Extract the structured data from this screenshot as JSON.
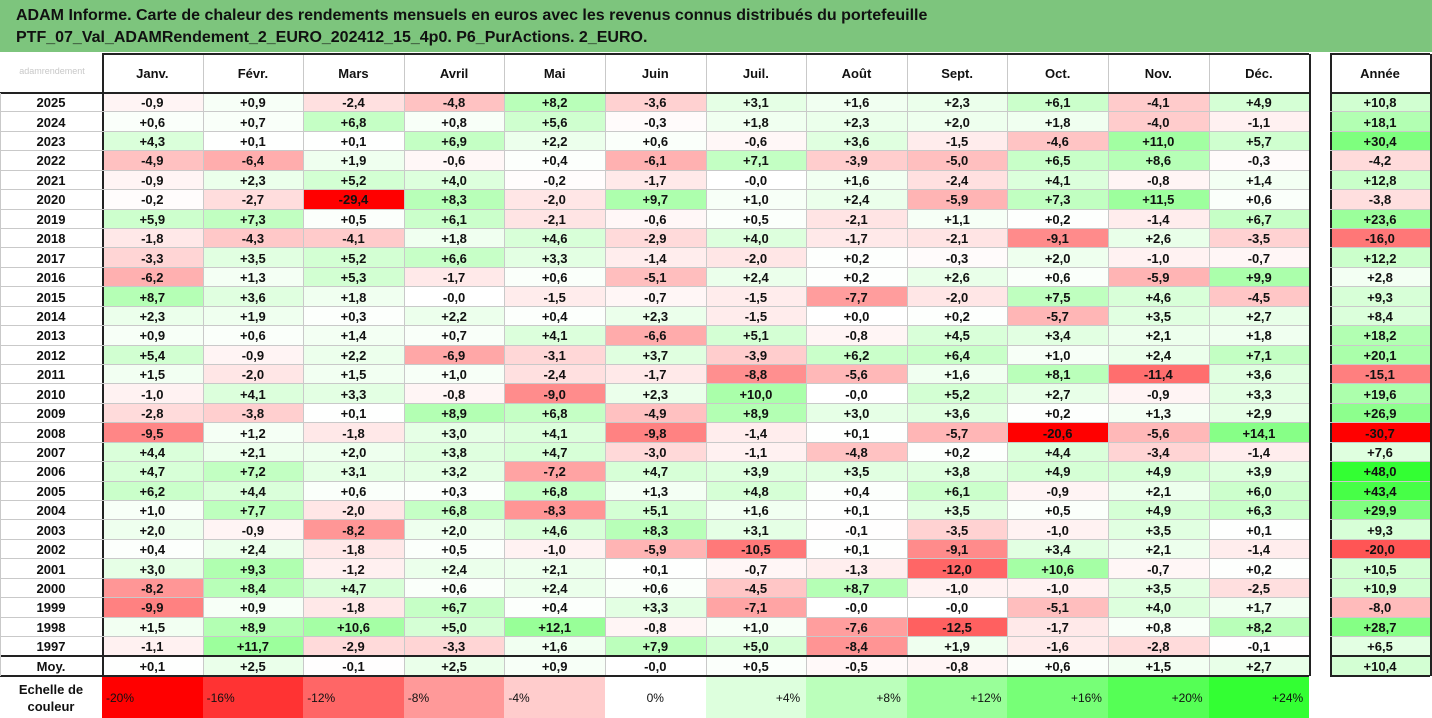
{
  "title": {
    "line1": "ADAM Informe. Carte de chaleur des rendements mensuels en euros avec les revenus connus distribués du portefeuille",
    "line2": "PTF_07_Val_ADAMRendement_2_EURO_202412_15_4p0. P6_PurActions. 2_EURO."
  },
  "watermark": "adamrendement",
  "chart_data": {
    "type": "heatmap",
    "columns": [
      "Janv.",
      "Févr.",
      "Mars",
      "Avril",
      "Mai",
      "Juin",
      "Juil.",
      "Août",
      "Sept.",
      "Oct.",
      "Nov.",
      "Déc."
    ],
    "year_column": "Année",
    "rows": [
      {
        "label": "2025",
        "values": [
          "-0,9",
          "+0,9",
          "-2,4",
          "-4,8",
          "+8,2",
          "-3,6",
          "+3,1",
          "+1,6",
          "+2,3",
          "+6,1",
          "-4,1",
          "+4,9"
        ],
        "year": "+10,8"
      },
      {
        "label": "2024",
        "values": [
          "+0,6",
          "+0,7",
          "+6,8",
          "+0,8",
          "+5,6",
          "-0,3",
          "+1,8",
          "+2,3",
          "+2,0",
          "+1,8",
          "-4,0",
          "-1,1"
        ],
        "year": "+18,1"
      },
      {
        "label": "2023",
        "values": [
          "+4,3",
          "+0,1",
          "+0,1",
          "+6,9",
          "+2,2",
          "+0,6",
          "-0,6",
          "+3,6",
          "-1,5",
          "-4,6",
          "+11,0",
          "+5,7"
        ],
        "year": "+30,4"
      },
      {
        "label": "2022",
        "values": [
          "-4,9",
          "-6,4",
          "+1,9",
          "-0,6",
          "+0,4",
          "-6,1",
          "+7,1",
          "-3,9",
          "-5,0",
          "+6,5",
          "+8,6",
          "-0,3"
        ],
        "year": "-4,2"
      },
      {
        "label": "2021",
        "values": [
          "-0,9",
          "+2,3",
          "+5,2",
          "+4,0",
          "-0,2",
          "-1,7",
          "-0,0",
          "+1,6",
          "-2,4",
          "+4,1",
          "-0,8",
          "+1,4"
        ],
        "year": "+12,8"
      },
      {
        "label": "2020",
        "values": [
          "-0,2",
          "-2,7",
          "-29,4",
          "+8,3",
          "-2,0",
          "+9,7",
          "+1,0",
          "+2,4",
          "-5,9",
          "+7,3",
          "+11,5",
          "+0,6"
        ],
        "year": "-3,8"
      },
      {
        "label": "2019",
        "values": [
          "+5,9",
          "+7,3",
          "+0,5",
          "+6,1",
          "-2,1",
          "-0,6",
          "+0,5",
          "-2,1",
          "+1,1",
          "+0,2",
          "-1,4",
          "+6,7"
        ],
        "year": "+23,6"
      },
      {
        "label": "2018",
        "values": [
          "-1,8",
          "-4,3",
          "-4,1",
          "+1,8",
          "+4,6",
          "-2,9",
          "+4,0",
          "-1,7",
          "-2,1",
          "-9,1",
          "+2,6",
          "-3,5"
        ],
        "year": "-16,0"
      },
      {
        "label": "2017",
        "values": [
          "-3,3",
          "+3,5",
          "+5,2",
          "+6,6",
          "+3,3",
          "-1,4",
          "-2,0",
          "+0,2",
          "-0,3",
          "+2,0",
          "-1,0",
          "-0,7"
        ],
        "year": "+12,2"
      },
      {
        "label": "2016",
        "values": [
          "-6,2",
          "+1,3",
          "+5,3",
          "-1,7",
          "+0,6",
          "-5,1",
          "+2,4",
          "+0,2",
          "+2,6",
          "+0,6",
          "-5,9",
          "+9,9"
        ],
        "year": "+2,8"
      },
      {
        "label": "2015",
        "values": [
          "+8,7",
          "+3,6",
          "+1,8",
          "-0,0",
          "-1,5",
          "-0,7",
          "-1,5",
          "-7,7",
          "-2,0",
          "+7,5",
          "+4,6",
          "-4,5"
        ],
        "year": "+9,3"
      },
      {
        "label": "2014",
        "values": [
          "+2,3",
          "+1,9",
          "+0,3",
          "+2,2",
          "+0,4",
          "+2,3",
          "-1,5",
          "+0,0",
          "+0,2",
          "-5,7",
          "+3,5",
          "+2,7"
        ],
        "year": "+8,4"
      },
      {
        "label": "2013",
        "values": [
          "+0,9",
          "+0,6",
          "+1,4",
          "+0,7",
          "+4,1",
          "-6,6",
          "+5,1",
          "-0,8",
          "+4,5",
          "+3,4",
          "+2,1",
          "+1,8"
        ],
        "year": "+18,2"
      },
      {
        "label": "2012",
        "values": [
          "+5,4",
          "-0,9",
          "+2,2",
          "-6,9",
          "-3,1",
          "+3,7",
          "-3,9",
          "+6,2",
          "+6,4",
          "+1,0",
          "+2,4",
          "+7,1"
        ],
        "year": "+20,1"
      },
      {
        "label": "2011",
        "values": [
          "+1,5",
          "-2,0",
          "+1,5",
          "+1,0",
          "-2,4",
          "-1,7",
          "-8,8",
          "-5,6",
          "+1,6",
          "+8,1",
          "-11,4",
          "+3,6"
        ],
        "year": "-15,1"
      },
      {
        "label": "2010",
        "values": [
          "-1,0",
          "+4,1",
          "+3,3",
          "-0,8",
          "-9,0",
          "+2,3",
          "+10,0",
          "-0,0",
          "+5,2",
          "+2,7",
          "-0,9",
          "+3,3"
        ],
        "year": "+19,6"
      },
      {
        "label": "2009",
        "values": [
          "-2,8",
          "-3,8",
          "+0,1",
          "+8,9",
          "+6,8",
          "-4,9",
          "+8,9",
          "+3,0",
          "+3,6",
          "+0,2",
          "+1,3",
          "+2,9"
        ],
        "year": "+26,9"
      },
      {
        "label": "2008",
        "values": [
          "-9,5",
          "+1,2",
          "-1,8",
          "+3,0",
          "+4,1",
          "-9,8",
          "-1,4",
          "+0,1",
          "-5,7",
          "-20,6",
          "-5,6",
          "+14,1"
        ],
        "year": "-30,7"
      },
      {
        "label": "2007",
        "values": [
          "+4,4",
          "+2,1",
          "+2,0",
          "+3,8",
          "+4,7",
          "-3,0",
          "-1,1",
          "-4,8",
          "+0,2",
          "+4,4",
          "-3,4",
          "-1,4"
        ],
        "year": "+7,6"
      },
      {
        "label": "2006",
        "values": [
          "+4,7",
          "+7,2",
          "+3,1",
          "+3,2",
          "-7,2",
          "+4,7",
          "+3,9",
          "+3,5",
          "+3,8",
          "+4,9",
          "+4,9",
          "+3,9"
        ],
        "year": "+48,0"
      },
      {
        "label": "2005",
        "values": [
          "+6,2",
          "+4,4",
          "+0,6",
          "+0,3",
          "+6,8",
          "+1,3",
          "+4,8",
          "+0,4",
          "+6,1",
          "-0,9",
          "+2,1",
          "+6,0"
        ],
        "year": "+43,4"
      },
      {
        "label": "2004",
        "values": [
          "+1,0",
          "+7,7",
          "-2,0",
          "+6,8",
          "-8,3",
          "+5,1",
          "+1,6",
          "+0,1",
          "+3,5",
          "+0,5",
          "+4,9",
          "+6,3"
        ],
        "year": "+29,9"
      },
      {
        "label": "2003",
        "values": [
          "+2,0",
          "-0,9",
          "-8,2",
          "+2,0",
          "+4,6",
          "+8,3",
          "+3,1",
          "-0,1",
          "-3,5",
          "-1,0",
          "+3,5",
          "+0,1"
        ],
        "year": "+9,3"
      },
      {
        "label": "2002",
        "values": [
          "+0,4",
          "+2,4",
          "-1,8",
          "+0,5",
          "-1,0",
          "-5,9",
          "-10,5",
          "+0,1",
          "-9,1",
          "+3,4",
          "+2,1",
          "-1,4"
        ],
        "year": "-20,0"
      },
      {
        "label": "2001",
        "values": [
          "+3,0",
          "+9,3",
          "-1,2",
          "+2,4",
          "+2,1",
          "+0,1",
          "-0,7",
          "-1,3",
          "-12,0",
          "+10,6",
          "-0,7",
          "+0,2"
        ],
        "year": "+10,5"
      },
      {
        "label": "2000",
        "values": [
          "-8,2",
          "+8,4",
          "+4,7",
          "+0,6",
          "+2,4",
          "+0,6",
          "-4,5",
          "+8,7",
          "-1,0",
          "-1,0",
          "+3,5",
          "-2,5"
        ],
        "year": "+10,9"
      },
      {
        "label": "1999",
        "values": [
          "-9,9",
          "+0,9",
          "-1,8",
          "+6,7",
          "+0,4",
          "+3,3",
          "-7,1",
          "-0,0",
          "-0,0",
          "-5,1",
          "+4,0",
          "+1,7"
        ],
        "year": "-8,0"
      },
      {
        "label": "1998",
        "values": [
          "+1,5",
          "+8,9",
          "+10,6",
          "+5,0",
          "+12,1",
          "-0,8",
          "+1,0",
          "-7,6",
          "-12,5",
          "-1,7",
          "+0,8",
          "+8,2"
        ],
        "year": "+28,7"
      },
      {
        "label": "1997",
        "values": [
          "-1,1",
          "+11,7",
          "-2,9",
          "-3,3",
          "+1,6",
          "+7,9",
          "+5,0",
          "-8,4",
          "+1,9",
          "-1,6",
          "-2,8",
          "-0,1"
        ],
        "year": "+6,5"
      }
    ],
    "average": {
      "label": "Moy.",
      "values": [
        "+0,1",
        "+2,5",
        "-0,1",
        "+2,5",
        "+0,9",
        "-0,0",
        "+0,5",
        "-0,5",
        "-0,8",
        "+0,6",
        "+1,5",
        "+2,7"
      ],
      "year": "+10,4"
    },
    "scale": {
      "label_line1": "Echelle de",
      "label_line2": "couleur",
      "steps": [
        {
          "label": "-20%",
          "value": -20
        },
        {
          "label": "-16%",
          "value": -16
        },
        {
          "label": "-12%",
          "value": -12
        },
        {
          "label": "-8%",
          "value": -8
        },
        {
          "label": "-4%",
          "value": -4
        },
        {
          "label": "0%",
          "value": 0
        },
        {
          "label": "+4%",
          "value": 4
        },
        {
          "label": "+8%",
          "value": 8
        },
        {
          "label": "+12%",
          "value": 12
        },
        {
          "label": "+16%",
          "value": 16
        },
        {
          "label": "+20%",
          "value": 20
        },
        {
          "label": "+24%",
          "value": 24
        }
      ]
    },
    "month_color_range": {
      "min": -20,
      "max": 24
    },
    "year_color_range": {
      "min": -30,
      "max": 48
    },
    "colors": {
      "negative": "#ff0000",
      "zero": "#ffffff",
      "positive": "#33ff33",
      "header_bg": "#7dc57d"
    }
  }
}
